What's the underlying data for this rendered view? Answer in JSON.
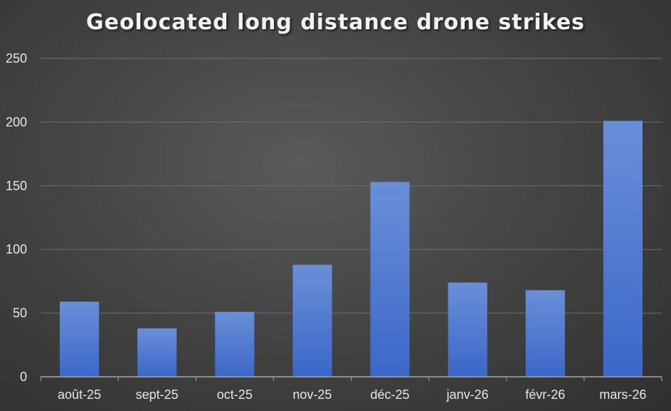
{
  "chart_data": {
    "type": "bar",
    "title": "Geolocated long distance drone strikes",
    "categories": [
      "août-25",
      "sept-25",
      "oct-25",
      "nov-25",
      "déc-25",
      "janv-26",
      "févr-26",
      "mars-26"
    ],
    "values": [
      59,
      38,
      51,
      88,
      153,
      74,
      68,
      201
    ],
    "xlabel": "",
    "ylabel": "",
    "ylim": [
      0,
      250
    ],
    "yticks": [
      "0",
      "50",
      "100",
      "150",
      "200",
      "250"
    ],
    "grid": true,
    "legend": "none",
    "colors": {
      "bar_top": "#6a8fd8",
      "bar_bottom": "#3a68c8",
      "grid": "#6e6e6e",
      "axis": "#a6a6a6",
      "text": "#e6e6e6"
    }
  }
}
